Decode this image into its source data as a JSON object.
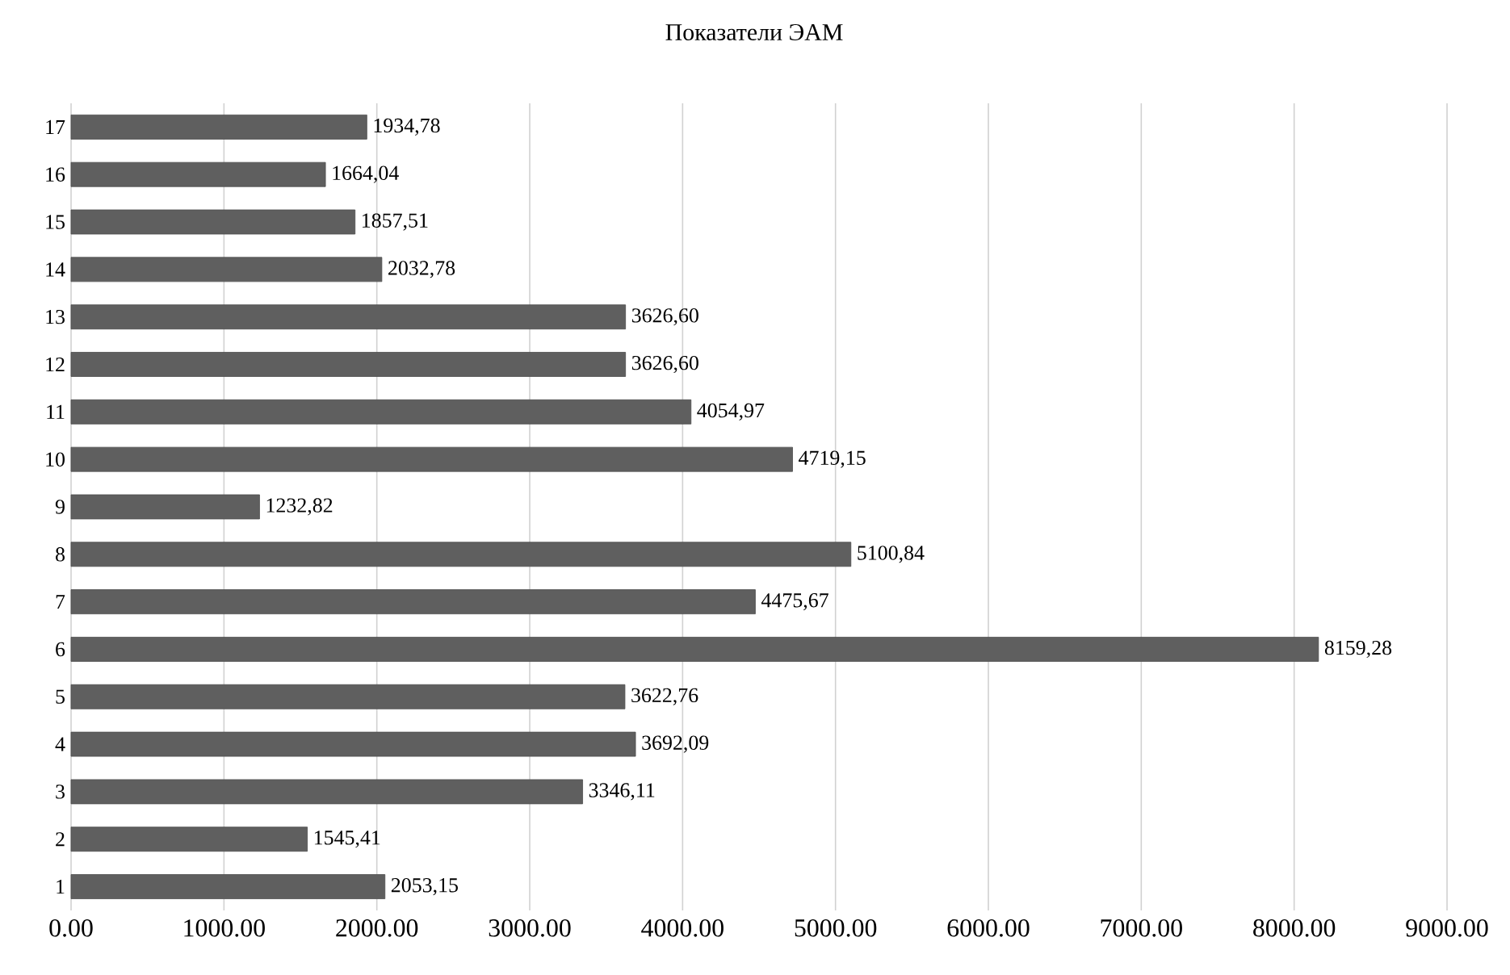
{
  "chart_data": {
    "type": "bar",
    "orientation": "horizontal",
    "title": "Показатели ЭАМ",
    "categories": [
      "17",
      "16",
      "15",
      "14",
      "13",
      "12",
      "11",
      "10",
      "9",
      "8",
      "7",
      "6",
      "5",
      "4",
      "3",
      "2",
      "1"
    ],
    "values": [
      1934.78,
      1664.04,
      1857.51,
      2032.78,
      3626.6,
      3626.6,
      4054.97,
      4719.15,
      1232.82,
      5100.84,
      4475.67,
      8159.28,
      3622.76,
      3692.09,
      3346.11,
      1545.41,
      2053.15
    ],
    "value_labels": [
      "1934,78",
      "1664,04",
      "1857,51",
      "2032,78",
      "3626,60",
      "3626,60",
      "4054,97",
      "4719,15",
      "1232,82",
      "5100,84",
      "4475,67",
      "8159,28",
      "3622,76",
      "3692,09",
      "3346,11",
      "1545,41",
      "2053,15"
    ],
    "color": "#5f5f5f",
    "xlim": [
      0,
      9000
    ],
    "xticks": [
      {
        "value": 0,
        "label": "0.00"
      },
      {
        "value": 1000,
        "label": "1000.00"
      },
      {
        "value": 2000,
        "label": "2000.00"
      },
      {
        "value": 3000,
        "label": "3000.00"
      },
      {
        "value": 4000,
        "label": "4000.00"
      },
      {
        "value": 5000,
        "label": "5000.00"
      },
      {
        "value": 6000,
        "label": "6000.00"
      },
      {
        "value": 7000,
        "label": "7000.00"
      },
      {
        "value": 8000,
        "label": "8000.00"
      },
      {
        "value": 9000,
        "label": "9000.00"
      }
    ],
    "grid": "x"
  }
}
